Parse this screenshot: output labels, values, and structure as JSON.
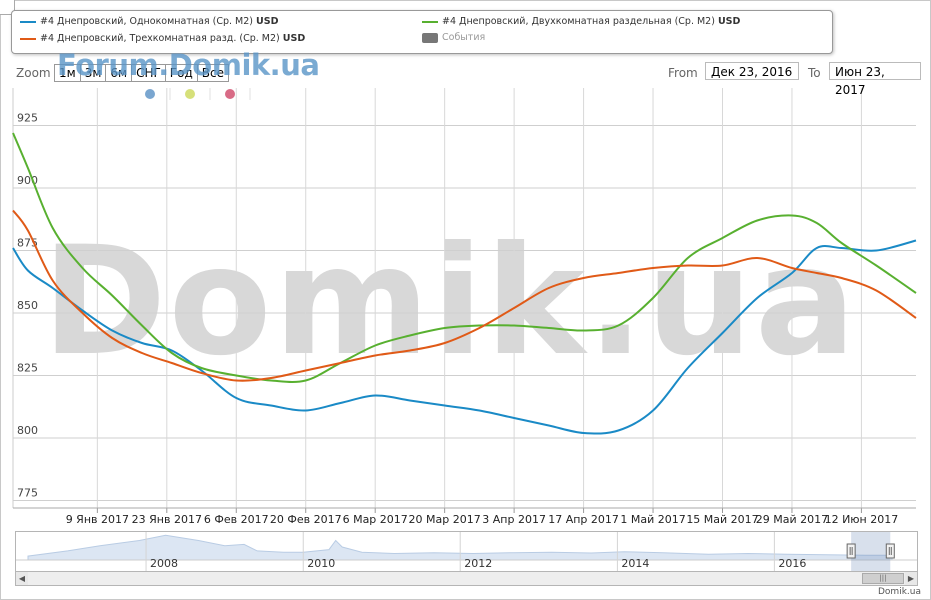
{
  "legend": {
    "items": [
      {
        "label": "#4 Днепровский, Однокомнатная (Ср. M2)",
        "currency": "USD",
        "color": "#1a8ac6"
      },
      {
        "label": "#4 Днепровский, Двухкомнатная раздельная (Ср. M2)",
        "currency": "USD",
        "color": "#58b030"
      },
      {
        "label": "#4 Днепровский, Трехкомнатная разд. (Ср. M2)",
        "currency": "USD",
        "color": "#e05a17"
      },
      {
        "label": "События",
        "color": "#777777"
      }
    ]
  },
  "zoom": {
    "label": "Zoom",
    "buttons": [
      "1м",
      "3м",
      "6м",
      "СНГ",
      "Год",
      "Все"
    ]
  },
  "range": {
    "from_label": "From",
    "from_value": "Дек 23, 2016",
    "to_label": "To",
    "to_value": "Июн 23, 2017"
  },
  "branding": {
    "forum_logo": "Forum.Domik.ua",
    "watermark": "Domik.ua",
    "credit": "Domik.ua"
  },
  "markers": {
    "colors": [
      "#7aa6d0",
      "#d6e07a",
      "#d86b86"
    ]
  },
  "chart_data": {
    "type": "line",
    "x_start": "2016-12-23",
    "x_end": "2017-06-23",
    "ylim": [
      772,
      940
    ],
    "yticks": [
      775,
      800,
      825,
      850,
      875,
      900,
      925
    ],
    "grid": true,
    "xticks": [
      {
        "date": "2017-01-09",
        "label": "9 Янв 2017"
      },
      {
        "date": "2017-01-23",
        "label": "23 Янв 2017"
      },
      {
        "date": "2017-02-06",
        "label": "6 Фев 2017"
      },
      {
        "date": "2017-02-20",
        "label": "20 Фев 2017"
      },
      {
        "date": "2017-03-06",
        "label": "6 Мар 2017"
      },
      {
        "date": "2017-03-20",
        "label": "20 Мар 2017"
      },
      {
        "date": "2017-04-03",
        "label": "3 Апр 2017"
      },
      {
        "date": "2017-04-17",
        "label": "17 Апр 2017"
      },
      {
        "date": "2017-05-01",
        "label": "1 Май 2017"
      },
      {
        "date": "2017-05-15",
        "label": "15 Май 2017"
      },
      {
        "date": "2017-05-29",
        "label": "29 Май 2017"
      },
      {
        "date": "2017-06-12",
        "label": "12 Июн 2017"
      }
    ],
    "series": [
      {
        "name": "#4 Днепровский, Однокомнатная (Ср. M2)",
        "color": "#1a8ac6",
        "points": [
          [
            "2016-12-23",
            876
          ],
          [
            "2016-12-26",
            867
          ],
          [
            "2016-12-31",
            860
          ],
          [
            "2017-01-06",
            851
          ],
          [
            "2017-01-12",
            843
          ],
          [
            "2017-01-18",
            838
          ],
          [
            "2017-01-24",
            835
          ],
          [
            "2017-01-30",
            827
          ],
          [
            "2017-02-06",
            816
          ],
          [
            "2017-02-13",
            813
          ],
          [
            "2017-02-20",
            811
          ],
          [
            "2017-02-27",
            814
          ],
          [
            "2017-03-06",
            817
          ],
          [
            "2017-03-13",
            815
          ],
          [
            "2017-03-20",
            813
          ],
          [
            "2017-03-27",
            811
          ],
          [
            "2017-04-03",
            808
          ],
          [
            "2017-04-10",
            805
          ],
          [
            "2017-04-17",
            802
          ],
          [
            "2017-04-24",
            803
          ],
          [
            "2017-05-01",
            811
          ],
          [
            "2017-05-08",
            828
          ],
          [
            "2017-05-15",
            842
          ],
          [
            "2017-05-22",
            856
          ],
          [
            "2017-05-29",
            866
          ],
          [
            "2017-06-03",
            876
          ],
          [
            "2017-06-08",
            876
          ],
          [
            "2017-06-15",
            875
          ],
          [
            "2017-06-23",
            879
          ]
        ]
      },
      {
        "name": "#4 Днепровский, Двухкомнатная раздельная (Ср. M2)",
        "color": "#58b030",
        "points": [
          [
            "2016-12-23",
            922
          ],
          [
            "2016-12-26",
            908
          ],
          [
            "2016-12-31",
            884
          ],
          [
            "2017-01-06",
            868
          ],
          [
            "2017-01-12",
            857
          ],
          [
            "2017-01-18",
            845
          ],
          [
            "2017-01-24",
            834
          ],
          [
            "2017-01-30",
            828
          ],
          [
            "2017-02-06",
            825
          ],
          [
            "2017-02-13",
            823
          ],
          [
            "2017-02-20",
            823
          ],
          [
            "2017-02-27",
            830
          ],
          [
            "2017-03-06",
            837
          ],
          [
            "2017-03-13",
            841
          ],
          [
            "2017-03-20",
            844
          ],
          [
            "2017-03-27",
            845
          ],
          [
            "2017-04-03",
            845
          ],
          [
            "2017-04-10",
            844
          ],
          [
            "2017-04-17",
            843
          ],
          [
            "2017-04-24",
            845
          ],
          [
            "2017-05-01",
            856
          ],
          [
            "2017-05-08",
            872
          ],
          [
            "2017-05-15",
            880
          ],
          [
            "2017-05-22",
            887
          ],
          [
            "2017-05-29",
            889
          ],
          [
            "2017-06-03",
            886
          ],
          [
            "2017-06-08",
            878
          ],
          [
            "2017-06-15",
            869
          ],
          [
            "2017-06-23",
            858
          ]
        ]
      },
      {
        "name": "#4 Днепровский, Трехкомнатная разд. (Ср. M2)",
        "color": "#e05a17",
        "points": [
          [
            "2016-12-23",
            891
          ],
          [
            "2016-12-26",
            883
          ],
          [
            "2016-12-31",
            863
          ],
          [
            "2017-01-06",
            850
          ],
          [
            "2017-01-12",
            840
          ],
          [
            "2017-01-18",
            834
          ],
          [
            "2017-01-24",
            830
          ],
          [
            "2017-01-30",
            826
          ],
          [
            "2017-02-06",
            823
          ],
          [
            "2017-02-13",
            824
          ],
          [
            "2017-02-20",
            827
          ],
          [
            "2017-02-27",
            830
          ],
          [
            "2017-03-06",
            833
          ],
          [
            "2017-03-13",
            835
          ],
          [
            "2017-03-20",
            838
          ],
          [
            "2017-03-27",
            844
          ],
          [
            "2017-04-03",
            852
          ],
          [
            "2017-04-10",
            860
          ],
          [
            "2017-04-17",
            864
          ],
          [
            "2017-04-24",
            866
          ],
          [
            "2017-05-01",
            868
          ],
          [
            "2017-05-08",
            869
          ],
          [
            "2017-05-15",
            869
          ],
          [
            "2017-05-22",
            872
          ],
          [
            "2017-05-29",
            868
          ],
          [
            "2017-06-03",
            866
          ],
          [
            "2017-06-08",
            864
          ],
          [
            "2017-06-15",
            859
          ],
          [
            "2017-06-23",
            848
          ]
        ]
      }
    ]
  },
  "navigator": {
    "year_labels": [
      "2008",
      "2010",
      "2012",
      "2014",
      "2016"
    ],
    "x_start": "2006-07-01",
    "x_end": "2017-07-01",
    "overview": [
      [
        "2006-07-01",
        0.15
      ],
      [
        "2007-01-01",
        0.35
      ],
      [
        "2007-06-01",
        0.55
      ],
      [
        "2007-12-01",
        0.75
      ],
      [
        "2008-04-01",
        0.95
      ],
      [
        "2008-09-01",
        0.75
      ],
      [
        "2009-01-01",
        0.55
      ],
      [
        "2009-04-01",
        0.6
      ],
      [
        "2009-06-01",
        0.35
      ],
      [
        "2009-10-01",
        0.3
      ],
      [
        "2010-01-01",
        0.3
      ],
      [
        "2010-05-01",
        0.4
      ],
      [
        "2010-06-01",
        0.75
      ],
      [
        "2010-07-01",
        0.5
      ],
      [
        "2010-10-01",
        0.3
      ],
      [
        "2011-03-01",
        0.25
      ],
      [
        "2011-09-01",
        0.28
      ],
      [
        "2012-03-01",
        0.25
      ],
      [
        "2012-09-01",
        0.28
      ],
      [
        "2013-03-01",
        0.3
      ],
      [
        "2013-09-01",
        0.27
      ],
      [
        "2014-02-01",
        0.32
      ],
      [
        "2014-08-01",
        0.28
      ],
      [
        "2015-03-01",
        0.22
      ],
      [
        "2015-09-01",
        0.25
      ],
      [
        "2016-03-01",
        0.22
      ],
      [
        "2016-09-01",
        0.2
      ],
      [
        "2017-03-01",
        0.18
      ],
      [
        "2017-07-01",
        0.18
      ]
    ]
  }
}
